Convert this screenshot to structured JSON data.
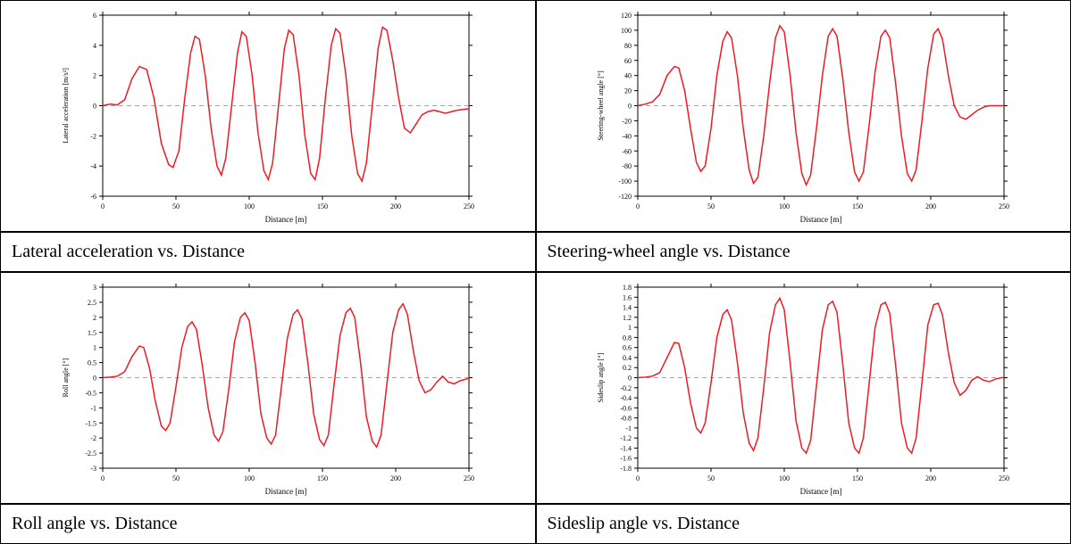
{
  "layout": {
    "cols": 2,
    "rows_chart": 2,
    "caption_rows": 2
  },
  "colors": {
    "series": "#ed1c24",
    "axis": "#000000",
    "grid": "#c8c8c8",
    "zero_line": "#888888",
    "background": "#ffffff",
    "border": "#000000"
  },
  "charts": [
    {
      "id": "lateral-accel",
      "caption": "Lateral acceleration vs. Distance",
      "xlabel": "Distance [m]",
      "ylabel": "Lateral acceleration [m/s²]",
      "xlim": [
        0,
        250
      ],
      "ylim": [
        -6,
        6
      ],
      "xtick_step": 50,
      "ytick_step": 2,
      "line_width": 1.5,
      "series": [
        [
          0,
          0
        ],
        [
          5,
          0.1
        ],
        [
          10,
          0.05
        ],
        [
          15,
          0.4
        ],
        [
          20,
          1.8
        ],
        [
          25,
          2.6
        ],
        [
          30,
          2.4
        ],
        [
          35,
          0.5
        ],
        [
          40,
          -2.5
        ],
        [
          45,
          -3.9
        ],
        [
          48,
          -4.1
        ],
        [
          52,
          -3.0
        ],
        [
          56,
          0.5
        ],
        [
          60,
          3.5
        ],
        [
          63,
          4.6
        ],
        [
          66,
          4.4
        ],
        [
          70,
          2.0
        ],
        [
          74,
          -1.5
        ],
        [
          78,
          -4.0
        ],
        [
          81,
          -4.6
        ],
        [
          84,
          -3.5
        ],
        [
          88,
          0.0
        ],
        [
          92,
          3.5
        ],
        [
          95,
          4.9
        ],
        [
          98,
          4.6
        ],
        [
          102,
          2.0
        ],
        [
          106,
          -1.8
        ],
        [
          110,
          -4.3
        ],
        [
          113,
          -4.9
        ],
        [
          116,
          -3.8
        ],
        [
          120,
          0.0
        ],
        [
          124,
          3.8
        ],
        [
          127,
          5.0
        ],
        [
          130,
          4.7
        ],
        [
          134,
          2.0
        ],
        [
          138,
          -2.0
        ],
        [
          142,
          -4.5
        ],
        [
          145,
          -4.9
        ],
        [
          148,
          -3.5
        ],
        [
          152,
          0.5
        ],
        [
          156,
          4.0
        ],
        [
          159,
          5.1
        ],
        [
          162,
          4.8
        ],
        [
          166,
          2.0
        ],
        [
          170,
          -2.0
        ],
        [
          174,
          -4.5
        ],
        [
          177,
          -5.0
        ],
        [
          180,
          -3.8
        ],
        [
          184,
          0.0
        ],
        [
          188,
          3.8
        ],
        [
          191,
          5.2
        ],
        [
          194,
          5.0
        ],
        [
          198,
          3.0
        ],
        [
          202,
          0.5
        ],
        [
          206,
          -1.5
        ],
        [
          210,
          -1.8
        ],
        [
          214,
          -1.2
        ],
        [
          218,
          -0.6
        ],
        [
          222,
          -0.4
        ],
        [
          226,
          -0.3
        ],
        [
          230,
          -0.4
        ],
        [
          234,
          -0.5
        ],
        [
          238,
          -0.4
        ],
        [
          242,
          -0.3
        ],
        [
          246,
          -0.25
        ],
        [
          250,
          -0.2
        ]
      ]
    },
    {
      "id": "steering-angle",
      "caption": "Steering-wheel angle vs. Distance",
      "xlabel": "Distance [m]",
      "ylabel": "Steering-wheel angle [°]",
      "xlim": [
        0,
        250
      ],
      "ylim": [
        -120,
        120
      ],
      "xtick_step": 50,
      "ytick_step": 20,
      "line_width": 1.5,
      "series": [
        [
          0,
          0
        ],
        [
          5,
          2
        ],
        [
          10,
          5
        ],
        [
          15,
          15
        ],
        [
          20,
          40
        ],
        [
          25,
          52
        ],
        [
          28,
          50
        ],
        [
          32,
          20
        ],
        [
          36,
          -30
        ],
        [
          40,
          -75
        ],
        [
          43,
          -87
        ],
        [
          46,
          -80
        ],
        [
          50,
          -30
        ],
        [
          54,
          40
        ],
        [
          58,
          85
        ],
        [
          61,
          98
        ],
        [
          64,
          90
        ],
        [
          68,
          40
        ],
        [
          72,
          -30
        ],
        [
          76,
          -85
        ],
        [
          79,
          -103
        ],
        [
          82,
          -95
        ],
        [
          86,
          -40
        ],
        [
          90,
          30
        ],
        [
          94,
          90
        ],
        [
          97,
          106
        ],
        [
          100,
          98
        ],
        [
          104,
          40
        ],
        [
          108,
          -35
        ],
        [
          112,
          -90
        ],
        [
          115,
          -105
        ],
        [
          118,
          -92
        ],
        [
          122,
          -30
        ],
        [
          126,
          40
        ],
        [
          130,
          92
        ],
        [
          133,
          102
        ],
        [
          136,
          92
        ],
        [
          140,
          35
        ],
        [
          144,
          -35
        ],
        [
          148,
          -88
        ],
        [
          151,
          -100
        ],
        [
          154,
          -88
        ],
        [
          158,
          -25
        ],
        [
          162,
          45
        ],
        [
          166,
          92
        ],
        [
          169,
          100
        ],
        [
          172,
          90
        ],
        [
          176,
          30
        ],
        [
          180,
          -40
        ],
        [
          184,
          -90
        ],
        [
          187,
          -100
        ],
        [
          190,
          -85
        ],
        [
          194,
          -20
        ],
        [
          198,
          50
        ],
        [
          202,
          95
        ],
        [
          205,
          102
        ],
        [
          208,
          88
        ],
        [
          212,
          40
        ],
        [
          216,
          0
        ],
        [
          220,
          -15
        ],
        [
          224,
          -18
        ],
        [
          228,
          -12
        ],
        [
          232,
          -6
        ],
        [
          236,
          -2
        ],
        [
          240,
          0
        ],
        [
          244,
          0
        ],
        [
          248,
          0
        ],
        [
          250,
          0
        ]
      ]
    },
    {
      "id": "roll-angle",
      "caption": "Roll angle vs. Distance",
      "xlabel": "Distance [m]",
      "ylabel": "Roll angle [°]",
      "xlim": [
        0,
        250
      ],
      "ylim": [
        -3,
        3
      ],
      "xtick_step": 50,
      "ytick_step": 0.5,
      "line_width": 1.5,
      "series": [
        [
          0,
          0
        ],
        [
          5,
          0.02
        ],
        [
          10,
          0.05
        ],
        [
          15,
          0.2
        ],
        [
          20,
          0.7
        ],
        [
          25,
          1.05
        ],
        [
          28,
          1.0
        ],
        [
          32,
          0.3
        ],
        [
          36,
          -0.8
        ],
        [
          40,
          -1.6
        ],
        [
          43,
          -1.75
        ],
        [
          46,
          -1.5
        ],
        [
          50,
          -0.3
        ],
        [
          54,
          1.0
        ],
        [
          58,
          1.7
        ],
        [
          61,
          1.85
        ],
        [
          64,
          1.6
        ],
        [
          68,
          0.4
        ],
        [
          72,
          -1.0
        ],
        [
          76,
          -1.9
        ],
        [
          79,
          -2.1
        ],
        [
          82,
          -1.8
        ],
        [
          86,
          -0.4
        ],
        [
          90,
          1.2
        ],
        [
          94,
          2.0
        ],
        [
          97,
          2.15
        ],
        [
          100,
          1.9
        ],
        [
          104,
          0.5
        ],
        [
          108,
          -1.2
        ],
        [
          112,
          -2.0
        ],
        [
          115,
          -2.2
        ],
        [
          118,
          -1.9
        ],
        [
          122,
          -0.3
        ],
        [
          126,
          1.3
        ],
        [
          130,
          2.1
        ],
        [
          133,
          2.25
        ],
        [
          136,
          1.95
        ],
        [
          140,
          0.5
        ],
        [
          144,
          -1.2
        ],
        [
          148,
          -2.05
        ],
        [
          151,
          -2.25
        ],
        [
          154,
          -1.9
        ],
        [
          158,
          -0.2
        ],
        [
          162,
          1.4
        ],
        [
          166,
          2.15
        ],
        [
          169,
          2.3
        ],
        [
          172,
          2.0
        ],
        [
          176,
          0.5
        ],
        [
          180,
          -1.3
        ],
        [
          184,
          -2.1
        ],
        [
          187,
          -2.3
        ],
        [
          190,
          -1.9
        ],
        [
          194,
          -0.2
        ],
        [
          198,
          1.5
        ],
        [
          202,
          2.25
        ],
        [
          205,
          2.45
        ],
        [
          208,
          2.1
        ],
        [
          212,
          0.9
        ],
        [
          216,
          -0.1
        ],
        [
          220,
          -0.5
        ],
        [
          224,
          -0.4
        ],
        [
          228,
          -0.15
        ],
        [
          232,
          0.05
        ],
        [
          236,
          -0.15
        ],
        [
          240,
          -0.2
        ],
        [
          244,
          -0.1
        ],
        [
          248,
          -0.05
        ],
        [
          250,
          -0.02
        ]
      ]
    },
    {
      "id": "sideslip-angle",
      "caption": "Sideslip angle vs. Distance",
      "xlabel": "Distance [m]",
      "ylabel": "Sideslip angle [°]",
      "xlim": [
        0,
        250
      ],
      "ylim": [
        -1.8,
        1.8
      ],
      "xtick_step": 50,
      "ytick_step": 0.2,
      "line_width": 1.5,
      "series": [
        [
          0,
          0
        ],
        [
          5,
          0.01
        ],
        [
          10,
          0.03
        ],
        [
          15,
          0.1
        ],
        [
          20,
          0.4
        ],
        [
          25,
          0.7
        ],
        [
          28,
          0.68
        ],
        [
          32,
          0.2
        ],
        [
          36,
          -0.5
        ],
        [
          40,
          -1.0
        ],
        [
          43,
          -1.1
        ],
        [
          46,
          -0.9
        ],
        [
          50,
          -0.1
        ],
        [
          54,
          0.8
        ],
        [
          58,
          1.25
        ],
        [
          61,
          1.35
        ],
        [
          64,
          1.15
        ],
        [
          68,
          0.3
        ],
        [
          72,
          -0.7
        ],
        [
          76,
          -1.3
        ],
        [
          79,
          -1.45
        ],
        [
          82,
          -1.2
        ],
        [
          86,
          -0.2
        ],
        [
          90,
          0.9
        ],
        [
          94,
          1.45
        ],
        [
          97,
          1.58
        ],
        [
          100,
          1.35
        ],
        [
          104,
          0.3
        ],
        [
          108,
          -0.85
        ],
        [
          112,
          -1.4
        ],
        [
          115,
          -1.5
        ],
        [
          118,
          -1.25
        ],
        [
          122,
          -0.15
        ],
        [
          126,
          0.95
        ],
        [
          130,
          1.45
        ],
        [
          133,
          1.52
        ],
        [
          136,
          1.3
        ],
        [
          140,
          0.25
        ],
        [
          144,
          -0.9
        ],
        [
          148,
          -1.4
        ],
        [
          151,
          -1.5
        ],
        [
          154,
          -1.2
        ],
        [
          158,
          -0.1
        ],
        [
          162,
          1.0
        ],
        [
          166,
          1.45
        ],
        [
          169,
          1.5
        ],
        [
          172,
          1.28
        ],
        [
          176,
          0.25
        ],
        [
          180,
          -0.9
        ],
        [
          184,
          -1.4
        ],
        [
          187,
          -1.5
        ],
        [
          190,
          -1.2
        ],
        [
          194,
          -0.1
        ],
        [
          198,
          1.05
        ],
        [
          202,
          1.45
        ],
        [
          205,
          1.48
        ],
        [
          208,
          1.25
        ],
        [
          212,
          0.5
        ],
        [
          216,
          -0.1
        ],
        [
          220,
          -0.35
        ],
        [
          224,
          -0.25
        ],
        [
          228,
          -0.05
        ],
        [
          232,
          0.02
        ],
        [
          236,
          -0.05
        ],
        [
          240,
          -0.08
        ],
        [
          244,
          -0.03
        ],
        [
          248,
          0
        ],
        [
          250,
          0
        ]
      ]
    }
  ]
}
